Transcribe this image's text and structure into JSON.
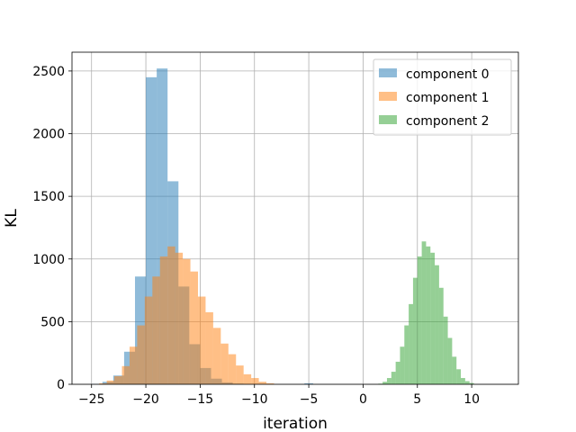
{
  "chart_data": {
    "type": "histogram",
    "title": "",
    "xlabel": "iteration",
    "ylabel": "KL",
    "xlim": [
      -26.8,
      14.3
    ],
    "ylim": [
      0,
      2650
    ],
    "xticks": [
      -25,
      -20,
      -15,
      -10,
      -5,
      0,
      5,
      10
    ],
    "yticks": [
      0,
      500,
      1000,
      1500,
      2000,
      2500
    ],
    "grid": true,
    "legend_position": "top-right",
    "series": [
      {
        "name": "component 0",
        "color": "#1f77b4",
        "opacity": 0.5,
        "bins": [
          {
            "x0": -25.0,
            "x1": -24.0,
            "count": 3
          },
          {
            "x0": -24.0,
            "x1": -23.0,
            "count": 20
          },
          {
            "x0": -23.0,
            "x1": -22.0,
            "count": 70
          },
          {
            "x0": -22.0,
            "x1": -21.0,
            "count": 260
          },
          {
            "x0": -21.0,
            "x1": -20.0,
            "count": 860
          },
          {
            "x0": -20.0,
            "x1": -19.0,
            "count": 2450
          },
          {
            "x0": -19.0,
            "x1": -18.0,
            "count": 2520
          },
          {
            "x0": -18.0,
            "x1": -17.0,
            "count": 1620
          },
          {
            "x0": -17.0,
            "x1": -16.0,
            "count": 780
          },
          {
            "x0": -16.0,
            "x1": -15.0,
            "count": 320
          },
          {
            "x0": -15.0,
            "x1": -14.0,
            "count": 130
          },
          {
            "x0": -14.0,
            "x1": -13.0,
            "count": 45
          },
          {
            "x0": -13.0,
            "x1": -12.0,
            "count": 15
          },
          {
            "x0": -12.0,
            "x1": -11.0,
            "count": 5
          },
          {
            "x0": -5.4,
            "x1": -4.6,
            "count": 8
          }
        ]
      },
      {
        "name": "component 1",
        "color": "#ff7f0e",
        "opacity": 0.5,
        "bins": [
          {
            "x0": -24.3,
            "x1": -23.6,
            "count": 8
          },
          {
            "x0": -23.6,
            "x1": -22.9,
            "count": 30
          },
          {
            "x0": -22.9,
            "x1": -22.2,
            "count": 65
          },
          {
            "x0": -22.2,
            "x1": -21.5,
            "count": 145
          },
          {
            "x0": -21.5,
            "x1": -20.8,
            "count": 300
          },
          {
            "x0": -20.8,
            "x1": -20.1,
            "count": 470
          },
          {
            "x0": -20.1,
            "x1": -19.4,
            "count": 700
          },
          {
            "x0": -19.4,
            "x1": -18.7,
            "count": 860
          },
          {
            "x0": -18.7,
            "x1": -18.0,
            "count": 1020
          },
          {
            "x0": -18.0,
            "x1": -17.3,
            "count": 1100
          },
          {
            "x0": -17.3,
            "x1": -16.6,
            "count": 1050
          },
          {
            "x0": -16.6,
            "x1": -15.9,
            "count": 1000
          },
          {
            "x0": -15.9,
            "x1": -15.2,
            "count": 900
          },
          {
            "x0": -15.2,
            "x1": -14.5,
            "count": 700
          },
          {
            "x0": -14.5,
            "x1": -13.8,
            "count": 575
          },
          {
            "x0": -13.8,
            "x1": -13.1,
            "count": 450
          },
          {
            "x0": -13.1,
            "x1": -12.4,
            "count": 325
          },
          {
            "x0": -12.4,
            "x1": -11.7,
            "count": 240
          },
          {
            "x0": -11.7,
            "x1": -11.0,
            "count": 150
          },
          {
            "x0": -11.0,
            "x1": -10.3,
            "count": 80
          },
          {
            "x0": -10.3,
            "x1": -9.6,
            "count": 50
          },
          {
            "x0": -9.6,
            "x1": -8.9,
            "count": 20
          },
          {
            "x0": -8.9,
            "x1": -8.2,
            "count": 8
          }
        ]
      },
      {
        "name": "component 2",
        "color": "#2ca02c",
        "opacity": 0.5,
        "bins": [
          {
            "x0": 1.4,
            "x1": 1.8,
            "count": 5
          },
          {
            "x0": 1.8,
            "x1": 2.2,
            "count": 20
          },
          {
            "x0": 2.2,
            "x1": 2.6,
            "count": 50
          },
          {
            "x0": 2.6,
            "x1": 3.0,
            "count": 100
          },
          {
            "x0": 3.0,
            "x1": 3.4,
            "count": 180
          },
          {
            "x0": 3.4,
            "x1": 3.8,
            "count": 300
          },
          {
            "x0": 3.8,
            "x1": 4.2,
            "count": 470
          },
          {
            "x0": 4.2,
            "x1": 4.6,
            "count": 640
          },
          {
            "x0": 4.6,
            "x1": 5.0,
            "count": 850
          },
          {
            "x0": 5.0,
            "x1": 5.4,
            "count": 1020
          },
          {
            "x0": 5.4,
            "x1": 5.8,
            "count": 1140
          },
          {
            "x0": 5.8,
            "x1": 6.2,
            "count": 1100
          },
          {
            "x0": 6.2,
            "x1": 6.6,
            "count": 1050
          },
          {
            "x0": 6.6,
            "x1": 7.0,
            "count": 950
          },
          {
            "x0": 7.0,
            "x1": 7.4,
            "count": 770
          },
          {
            "x0": 7.4,
            "x1": 7.8,
            "count": 540
          },
          {
            "x0": 7.8,
            "x1": 8.2,
            "count": 370
          },
          {
            "x0": 8.2,
            "x1": 8.6,
            "count": 220
          },
          {
            "x0": 8.6,
            "x1": 9.0,
            "count": 120
          },
          {
            "x0": 9.0,
            "x1": 9.4,
            "count": 50
          },
          {
            "x0": 9.4,
            "x1": 9.8,
            "count": 25
          },
          {
            "x0": 9.8,
            "x1": 10.2,
            "count": 10
          }
        ]
      }
    ]
  }
}
